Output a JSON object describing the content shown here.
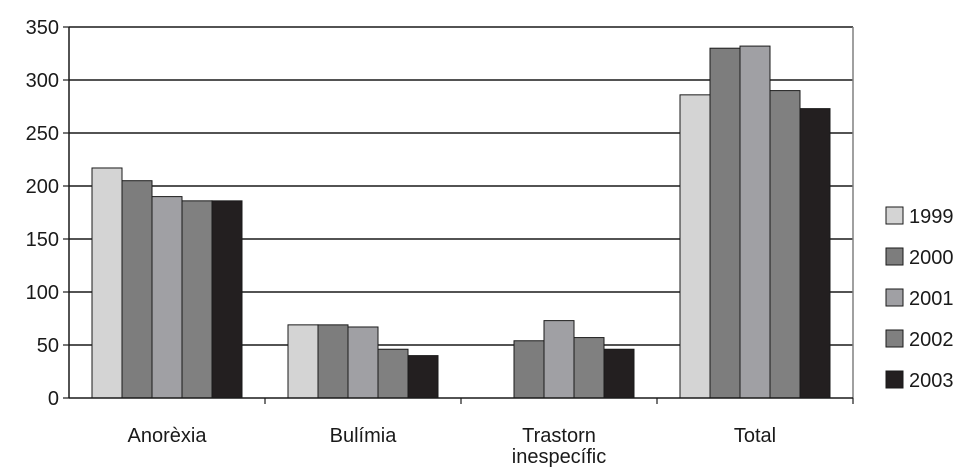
{
  "chart_data": {
    "type": "bar",
    "categories": [
      [
        "Anorèxia"
      ],
      [
        "Bulímia"
      ],
      [
        "Trastorn",
        "inespecífic"
      ],
      [
        "Total"
      ]
    ],
    "series": [
      {
        "name": "1999",
        "color": "#d4d4d4",
        "values": [
          217,
          69,
          null,
          286
        ]
      },
      {
        "name": "2000",
        "color": "#7d7d7d",
        "values": [
          205,
          69,
          54,
          330
        ]
      },
      {
        "name": "2001",
        "color": "#a0a0a4",
        "values": [
          190,
          67,
          73,
          332
        ]
      },
      {
        "name": "2002",
        "color": "#808080",
        "values": [
          186,
          46,
          57,
          290
        ]
      },
      {
        "name": "2003",
        "color": "#231f20",
        "values": [
          186,
          40,
          46,
          273
        ]
      }
    ],
    "yticks": [
      0,
      50,
      100,
      150,
      200,
      250,
      300,
      350
    ],
    "ylim": [
      0,
      350
    ],
    "grid": true,
    "legend": "right",
    "title": "",
    "xlabel": "",
    "ylabel": ""
  }
}
